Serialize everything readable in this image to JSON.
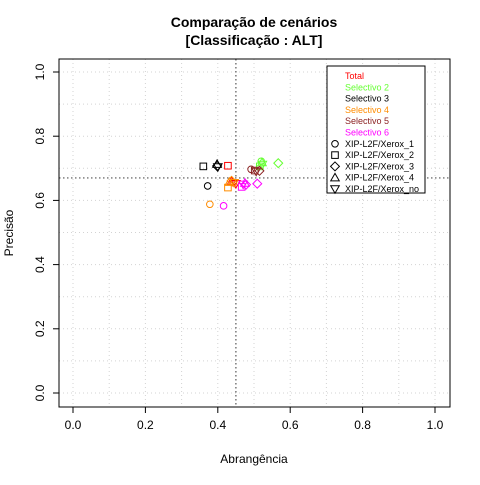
{
  "chart_data": {
    "type": "scatter",
    "title": "Comparação de cenários",
    "subtitle": "[Classificação : ALT]",
    "xlabel": "Abrangência",
    "ylabel": "Precisão",
    "xlim": [
      0,
      1
    ],
    "ylim": [
      0,
      1
    ],
    "xticks": [
      0.0,
      0.2,
      0.4,
      0.6,
      0.8,
      1.0
    ],
    "xtick_labels": [
      "0.0",
      "0.2",
      "0.4",
      "0.6",
      "0.8",
      "1.0"
    ],
    "yticks": [
      0.0,
      0.2,
      0.4,
      0.6,
      0.8,
      1.0
    ],
    "ytick_labels": [
      "0.0",
      "0.2",
      "0.4",
      "0.6",
      "0.8",
      "1.0"
    ],
    "grid": true,
    "reference_lines": {
      "x": 0.45,
      "y": 0.67
    },
    "legend_position": "top-right",
    "color_legend": [
      {
        "label": "Total",
        "color": "#ff0000"
      },
      {
        "label": "Selectivo 2",
        "color": "#66ff33"
      },
      {
        "label": "Selectivo 3",
        "color": "#000000"
      },
      {
        "label": "Selectivo 4",
        "color": "#ff8c00"
      },
      {
        "label": "Selectivo 5",
        "color": "#8b2222"
      },
      {
        "label": "Selectivo 6",
        "color": "#ff00ff"
      }
    ],
    "shape_legend": [
      {
        "label": "XIP-L2F/Xerox_1",
        "shape": "circle"
      },
      {
        "label": "XIP-L2F/Xerox_2",
        "shape": "square"
      },
      {
        "label": "XIP-L2F/Xerox_3",
        "shape": "diamond"
      },
      {
        "label": "XIP-L2F/Xerox_4",
        "shape": "triangle-up"
      },
      {
        "label": "XIP-L2F/Xerox_no",
        "shape": "triangle-down"
      }
    ],
    "points": [
      {
        "group": "Selectivo 2",
        "shape": "diamond",
        "x": 0.567,
        "y": 0.716
      },
      {
        "group": "Selectivo 2",
        "shape": "circle",
        "x": 0.52,
        "y": 0.722
      },
      {
        "group": "Selectivo 2",
        "shape": "triangle-up",
        "x": 0.522,
        "y": 0.718
      },
      {
        "group": "Selectivo 2",
        "shape": "triangle-down",
        "x": 0.523,
        "y": 0.712
      },
      {
        "group": "Selectivo 2",
        "shape": "square",
        "x": 0.516,
        "y": 0.706
      },
      {
        "group": "Selectivo 5",
        "shape": "circle",
        "x": 0.492,
        "y": 0.697
      },
      {
        "group": "Selectivo 5",
        "shape": "square",
        "x": 0.502,
        "y": 0.693
      },
      {
        "group": "Selectivo 5",
        "shape": "triangle-down",
        "x": 0.506,
        "y": 0.69
      },
      {
        "group": "Selectivo 5",
        "shape": "diamond",
        "x": 0.515,
        "y": 0.692
      },
      {
        "group": "Selectivo 3",
        "shape": "square",
        "x": 0.36,
        "y": 0.706
      },
      {
        "group": "Selectivo 3",
        "shape": "triangle-up",
        "x": 0.398,
        "y": 0.713
      },
      {
        "group": "Selectivo 3",
        "shape": "diamond",
        "x": 0.398,
        "y": 0.707
      },
      {
        "group": "Selectivo 3",
        "shape": "triangle-down",
        "x": 0.4,
        "y": 0.704
      },
      {
        "group": "Selectivo 3",
        "shape": "circle",
        "x": 0.372,
        "y": 0.645
      },
      {
        "group": "Total",
        "shape": "square",
        "x": 0.428,
        "y": 0.708
      },
      {
        "group": "Total",
        "shape": "triangle-up",
        "x": 0.438,
        "y": 0.659
      },
      {
        "group": "Total",
        "shape": "circle",
        "x": 0.443,
        "y": 0.655
      },
      {
        "group": "Total",
        "shape": "triangle-down",
        "x": 0.45,
        "y": 0.652
      },
      {
        "group": "Selectivo 4",
        "shape": "square",
        "x": 0.428,
        "y": 0.64
      },
      {
        "group": "Selectivo 4",
        "shape": "triangle-up",
        "x": 0.432,
        "y": 0.657
      },
      {
        "group": "Selectivo 4",
        "shape": "diamond",
        "x": 0.438,
        "y": 0.661
      },
      {
        "group": "Selectivo 4",
        "shape": "triangle-down",
        "x": 0.445,
        "y": 0.655
      },
      {
        "group": "Selectivo 4",
        "shape": "circle",
        "x": 0.378,
        "y": 0.588
      },
      {
        "group": "Selectivo 6",
        "shape": "square",
        "x": 0.466,
        "y": 0.642
      },
      {
        "group": "Selectivo 6",
        "shape": "triangle-up",
        "x": 0.475,
        "y": 0.654
      },
      {
        "group": "Selectivo 6",
        "shape": "diamond",
        "x": 0.478,
        "y": 0.649
      },
      {
        "group": "Selectivo 6",
        "shape": "triangle-down",
        "x": 0.47,
        "y": 0.65
      },
      {
        "group": "Selectivo 6",
        "shape": "diamond",
        "x": 0.509,
        "y": 0.652
      },
      {
        "group": "Selectivo 6",
        "shape": "circle",
        "x": 0.416,
        "y": 0.583
      }
    ]
  }
}
